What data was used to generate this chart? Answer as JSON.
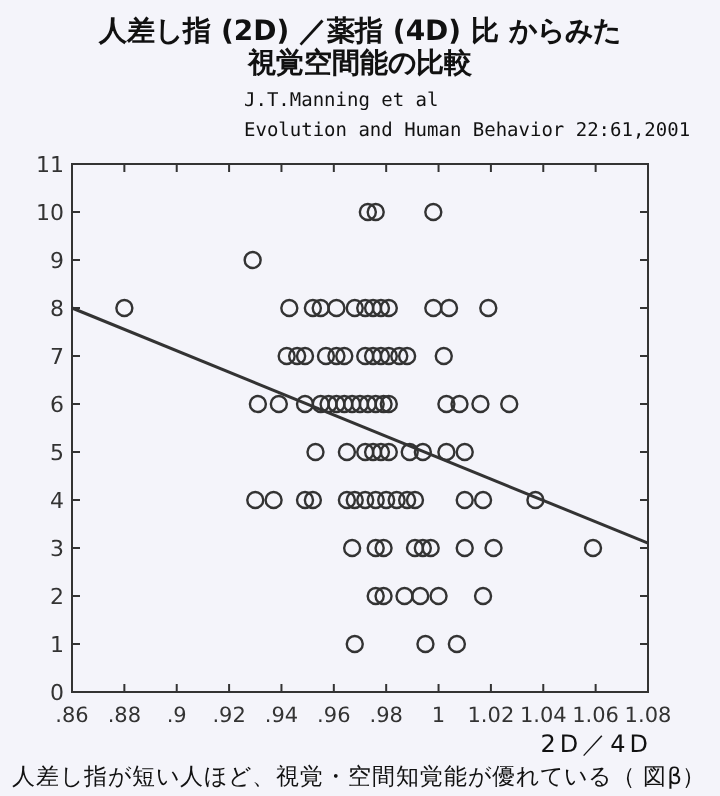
{
  "chart_data": {
    "type": "scatter",
    "title": "人差し指 (2D) ／薬指 (4D) 比 からみた",
    "subtitle": "視覚空間能の比較",
    "xlabel": "2D／4D",
    "annotations": [
      "J.T.Manning et al",
      "Evolution and Human Behavior 22:61,2001",
      "人差し指が短い人ほど、視覚・空間知覚能が優れている（ 図β）"
    ],
    "xlim": [
      0.86,
      1.08
    ],
    "xticks": [
      {
        "value": 0.86,
        "label": ".86"
      },
      {
        "value": 0.88,
        "label": ".88"
      },
      {
        "value": 0.9,
        "label": ".9"
      },
      {
        "value": 0.92,
        "label": ".92"
      },
      {
        "value": 0.94,
        "label": ".94"
      },
      {
        "value": 0.96,
        "label": ".96"
      },
      {
        "value": 0.98,
        "label": ".98"
      },
      1,
      1.02,
      1.04,
      1.06,
      1.08
    ],
    "ylim": [
      0,
      11
    ],
    "yticks": [
      0,
      1,
      2,
      3,
      4,
      5,
      6,
      7,
      8,
      9,
      10,
      11
    ],
    "marker": "circle",
    "grid": false,
    "series": [
      {
        "color": "#333333",
        "x": [
          0.973,
          0.976,
          0.998,
          0.929,
          0.88,
          0.943,
          0.952,
          0.955,
          0.961,
          0.968,
          0.972,
          0.975,
          0.978,
          0.981,
          0.998,
          1.004,
          1.019,
          0.942,
          0.946,
          0.949,
          0.957,
          0.961,
          0.964,
          0.972,
          0.975,
          0.978,
          0.981,
          0.985,
          0.988,
          1.002,
          0.931,
          0.939,
          0.949,
          0.955,
          0.958,
          0.961,
          0.964,
          0.967,
          0.97,
          0.973,
          0.976,
          0.979,
          0.981,
          1.003,
          1.008,
          1.016,
          1.027,
          0.953,
          0.965,
          0.972,
          0.975,
          0.978,
          0.981,
          0.989,
          0.994,
          1.003,
          1.01,
          0.93,
          0.937,
          0.949,
          0.952,
          0.965,
          0.968,
          0.972,
          0.976,
          0.98,
          0.984,
          0.988,
          0.991,
          1.01,
          1.017,
          1.037,
          0.967,
          0.976,
          0.979,
          0.991,
          0.994,
          0.997,
          1.01,
          1.021,
          1.059,
          0.976,
          0.979,
          0.987,
          0.993,
          1.0,
          1.017,
          0.968,
          0.995,
          1.007
        ],
        "values": [
          10,
          10,
          10,
          9,
          8,
          8,
          8,
          8,
          8,
          8,
          8,
          8,
          8,
          8,
          8,
          8,
          8,
          7,
          7,
          7,
          7,
          7,
          7,
          7,
          7,
          7,
          7,
          7,
          7,
          7,
          6,
          6,
          6,
          6,
          6,
          6,
          6,
          6,
          6,
          6,
          6,
          6,
          6,
          6,
          6,
          6,
          6,
          5,
          5,
          5,
          5,
          5,
          5,
          5,
          5,
          5,
          5,
          4,
          4,
          4,
          4,
          4,
          4,
          4,
          4,
          4,
          4,
          4,
          4,
          4,
          4,
          4,
          3,
          3,
          3,
          3,
          3,
          3,
          3,
          3,
          3,
          2,
          2,
          2,
          2,
          2,
          2,
          1,
          1,
          1
        ]
      },
      {
        "type": "line",
        "color": "#333333",
        "marker": "none",
        "line_style": "solid",
        "x": [
          0.86,
          1.08
        ],
        "values": [
          8.0,
          3.1
        ]
      }
    ]
  }
}
